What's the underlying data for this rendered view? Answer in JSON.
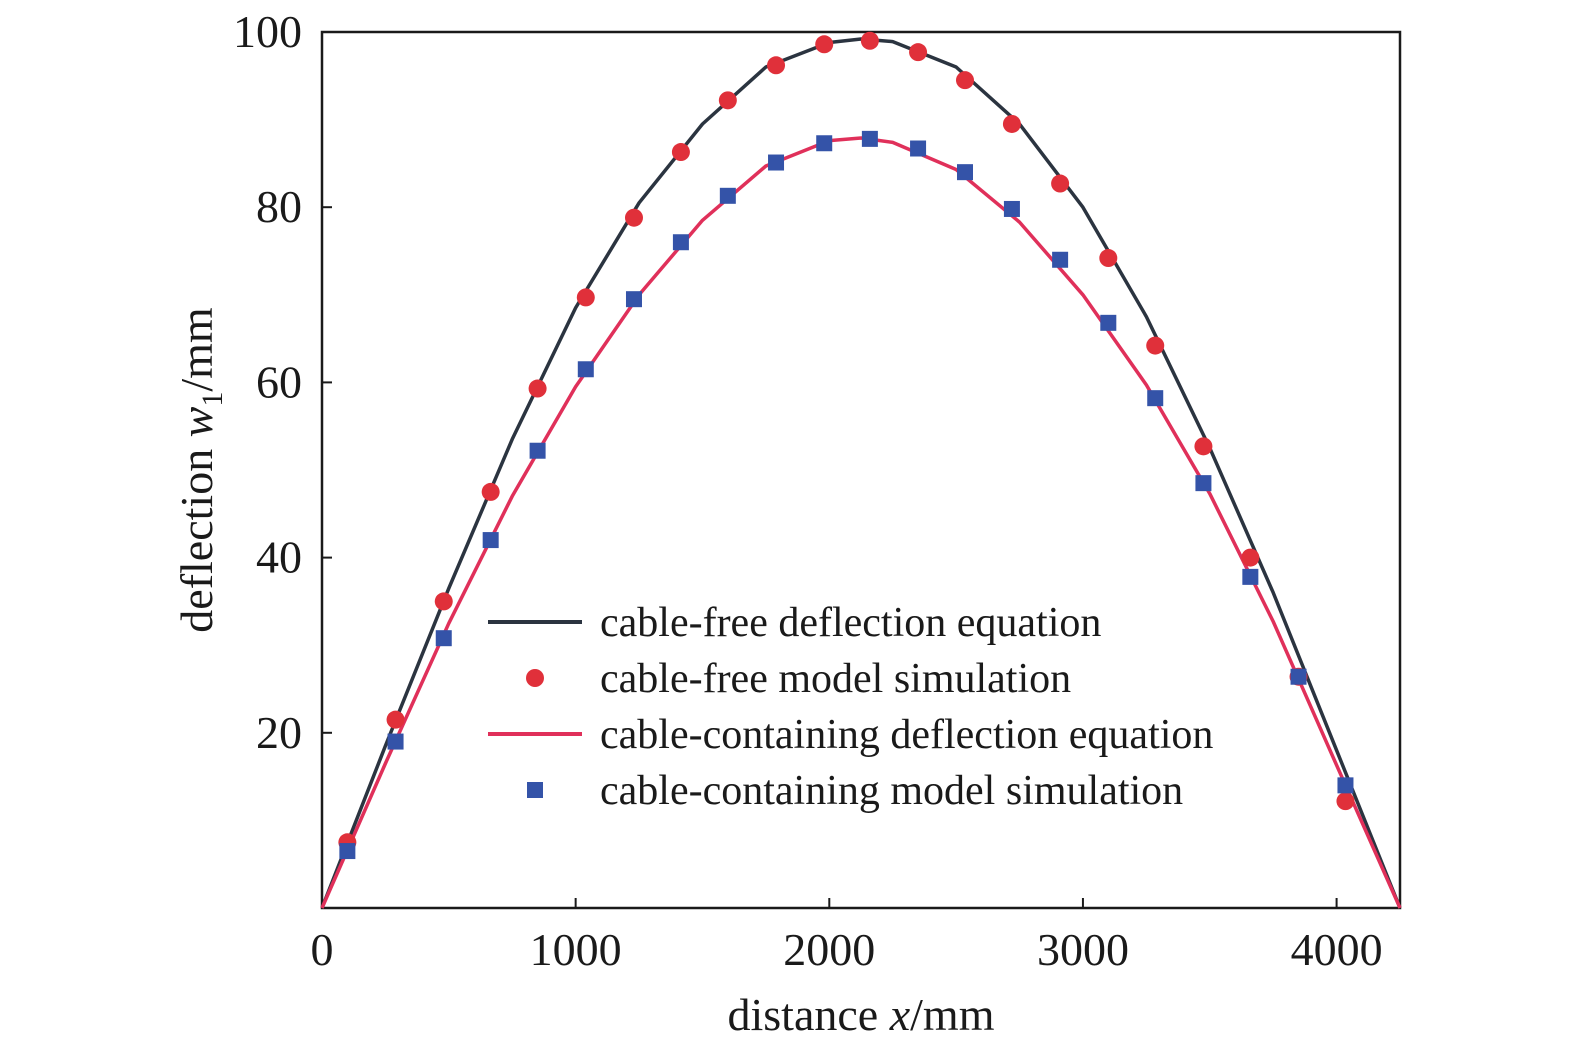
{
  "chart_data": {
    "type": "line",
    "xlabel": {
      "prefix": "distance ",
      "var": "x",
      "suffix": "/mm"
    },
    "ylabel": {
      "prefix": "deflection ",
      "var": "w",
      "sub": "1",
      "suffix": "/mm"
    },
    "xlim": [
      0,
      4250
    ],
    "ylim": [
      0,
      100
    ],
    "xticks": [
      0,
      1000,
      2000,
      3000,
      4000
    ],
    "yticks": [
      20,
      40,
      60,
      80,
      100
    ],
    "grid": false,
    "legend_position": "lower-center",
    "series": [
      {
        "name": "cable-free deflection equation",
        "kind": "line",
        "color": "#2b3440",
        "x": [
          0,
          250,
          500,
          750,
          1000,
          1250,
          1500,
          1750,
          2000,
          2125,
          2250,
          2500,
          2750,
          3000,
          3250,
          3500,
          3750,
          4000,
          4250
        ],
        "y": [
          0,
          18.5,
          36.5,
          53.5,
          68.5,
          80.5,
          89.5,
          96.0,
          98.8,
          99.2,
          98.9,
          96.0,
          89.5,
          80.0,
          67.5,
          52.5,
          36.0,
          18.0,
          0
        ]
      },
      {
        "name": "cable-free model simulation",
        "kind": "scatter",
        "marker": "circle",
        "color": "#e0303a",
        "x": [
          100,
          290,
          480,
          665,
          850,
          1040,
          1230,
          1415,
          1600,
          1790,
          1980,
          2160,
          2350,
          2535,
          2720,
          2910,
          3100,
          3285,
          3475,
          3660,
          3850,
          4035
        ],
        "y": [
          7.5,
          21.5,
          35.0,
          47.5,
          59.3,
          69.7,
          78.8,
          86.3,
          92.2,
          96.2,
          98.6,
          99.0,
          97.7,
          94.5,
          89.5,
          82.7,
          74.2,
          64.2,
          52.7,
          40.0,
          26.4,
          12.2
        ]
      },
      {
        "name": "cable-containing deflection equation",
        "kind": "line",
        "color": "#e0305a",
        "x": [
          0,
          250,
          500,
          750,
          1000,
          1250,
          1500,
          1750,
          2000,
          2125,
          2250,
          2500,
          2750,
          3000,
          3250,
          3500,
          3750,
          4000,
          4250
        ],
        "y": [
          0,
          16.5,
          32.5,
          47.0,
          59.5,
          70.0,
          78.5,
          84.7,
          87.6,
          87.9,
          87.4,
          84.3,
          78.3,
          70.0,
          59.7,
          47.3,
          32.7,
          16.3,
          0
        ]
      },
      {
        "name": "cable-containing model simulation",
        "kind": "scatter",
        "marker": "square",
        "color": "#3453a8",
        "x": [
          100,
          290,
          480,
          665,
          850,
          1040,
          1230,
          1415,
          1600,
          1790,
          1980,
          2160,
          2350,
          2535,
          2720,
          2910,
          3100,
          3285,
          3475,
          3660,
          3850,
          4035
        ],
        "y": [
          6.5,
          19.0,
          30.8,
          42.0,
          52.2,
          61.5,
          69.5,
          76.0,
          81.3,
          85.1,
          87.3,
          87.8,
          86.7,
          84.0,
          79.8,
          74.0,
          66.8,
          58.2,
          48.5,
          37.8,
          26.4,
          14.0
        ]
      }
    ]
  }
}
